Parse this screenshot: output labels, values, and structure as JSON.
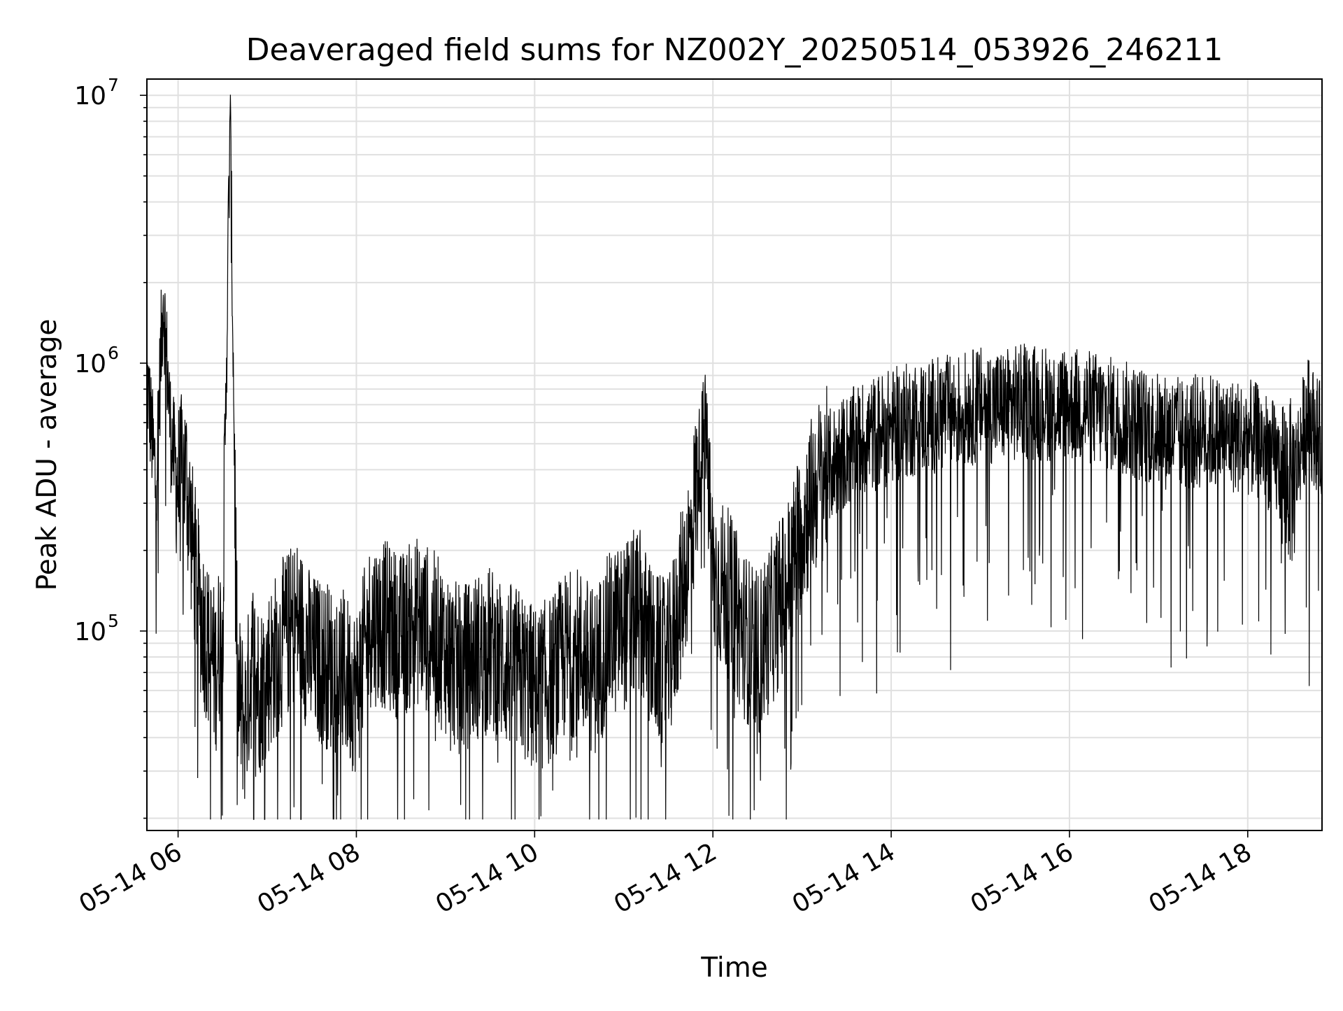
{
  "chart_data": {
    "type": "line",
    "title": "Deaveraged field sums for NZ002Y_20250514_053926_246211",
    "xlabel": "Time",
    "ylabel": "Peak ADU - average",
    "yscale": "log",
    "ylim": [
      18000,
      11500000
    ],
    "xlim": [
      "2025-05-14 05:39",
      "2025-05-14 18:50"
    ],
    "grid": true,
    "line_color": "#000000",
    "x_ticks": [
      {
        "label": "05-14 06",
        "time": "2025-05-14 06:00"
      },
      {
        "label": "05-14 08",
        "time": "2025-05-14 08:00"
      },
      {
        "label": "05-14 10",
        "time": "2025-05-14 10:00"
      },
      {
        "label": "05-14 12",
        "time": "2025-05-14 12:00"
      },
      {
        "label": "05-14 14",
        "time": "2025-05-14 14:00"
      },
      {
        "label": "05-14 16",
        "time": "2025-05-14 16:00"
      },
      {
        "label": "05-14 18",
        "time": "2025-05-14 18:00"
      }
    ],
    "y_ticks": [
      {
        "base": "10",
        "exp": "5",
        "value": 100000
      },
      {
        "base": "10",
        "exp": "6",
        "value": 1000000
      },
      {
        "base": "10",
        "exp": "7",
        "value": 10000000
      }
    ],
    "series": [
      {
        "x": [
          "05:39",
          "05:45",
          "05:50",
          "05:55",
          "06:00",
          "06:05",
          "06:10",
          "06:15",
          "06:20",
          "06:25",
          "06:30",
          "06:35",
          "06:40",
          "06:45",
          "06:50",
          "06:55",
          "07:00",
          "07:10",
          "07:20",
          "07:30",
          "07:40",
          "07:50",
          "08:00",
          "08:10",
          "08:20",
          "08:30",
          "08:40",
          "08:50",
          "09:00",
          "09:10",
          "09:20",
          "09:30",
          "09:40",
          "09:50",
          "10:00",
          "10:10",
          "10:20",
          "10:30",
          "10:40",
          "10:50",
          "11:00",
          "11:10",
          "11:20",
          "11:30",
          "11:40",
          "11:45",
          "11:50",
          "11:55",
          "12:00",
          "12:10",
          "12:20",
          "12:30",
          "12:40",
          "12:50",
          "13:00",
          "13:10",
          "13:20",
          "13:30",
          "13:40",
          "13:50",
          "14:00",
          "14:15",
          "14:30",
          "14:45",
          "15:00",
          "15:15",
          "15:30",
          "15:45",
          "16:00",
          "16:15",
          "16:30",
          "16:45",
          "17:00",
          "17:15",
          "17:30",
          "17:45",
          "18:00",
          "18:10",
          "18:20",
          "18:30",
          "18:40",
          "18:50"
        ],
        "y": [
          900000,
          350000,
          1800000,
          550000,
          350000,
          400000,
          200000,
          120000,
          90000,
          70000,
          110000,
          8500000,
          60000,
          45000,
          80000,
          60000,
          70000,
          90000,
          110000,
          80000,
          75000,
          70000,
          60000,
          110000,
          105000,
          95000,
          110000,
          100000,
          85000,
          70000,
          80000,
          85000,
          75000,
          70000,
          60000,
          65000,
          80000,
          85000,
          70000,
          95000,
          105000,
          120000,
          80000,
          75000,
          150000,
          220000,
          400000,
          600000,
          160000,
          140000,
          100000,
          80000,
          110000,
          150000,
          250000,
          350000,
          420000,
          470000,
          520000,
          550000,
          580000,
          620000,
          640000,
          660000,
          700000,
          690000,
          720000,
          710000,
          700000,
          680000,
          640000,
          600000,
          560000,
          540000,
          560000,
          540000,
          530000,
          500000,
          420000,
          350000,
          650000,
          500000
        ]
      }
    ]
  }
}
